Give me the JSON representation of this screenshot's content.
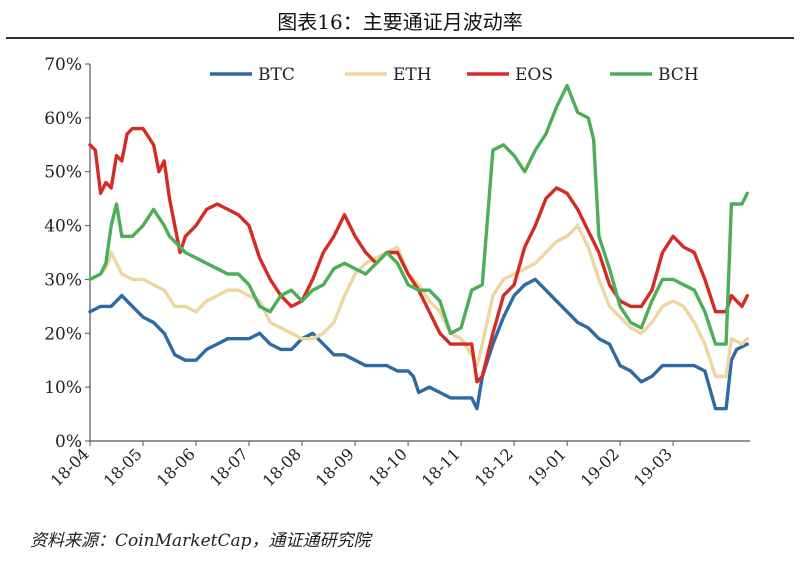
{
  "header": {
    "title": "图表16：主要通证月波动率"
  },
  "footer": {
    "source": "资料来源：CoinMarketCap，通证通研究院"
  },
  "chart_data": {
    "type": "line",
    "title": "图表16：主要通证月波动率",
    "xlabel": "",
    "ylabel": "",
    "ylim": [
      0,
      70
    ],
    "yticks": [
      "0%",
      "10%",
      "20%",
      "30%",
      "40%",
      "50%",
      "60%",
      "70%"
    ],
    "xlim": [
      0,
      12.45
    ],
    "categories": [
      "18-04",
      "18-05",
      "18-06",
      "18-07",
      "18-08",
      "18-09",
      "18-10",
      "18-11",
      "18-12",
      "19-01",
      "19-02",
      "19-03"
    ],
    "legend_position": "top",
    "grid": false,
    "colors": {
      "BTC": "#2e6aa6",
      "ETH": "#eed6a0",
      "EOS": "#d62b24",
      "BCH": "#4caf58"
    },
    "series": [
      {
        "name": "BTC",
        "points": [
          [
            0,
            24
          ],
          [
            0.2,
            25
          ],
          [
            0.4,
            25
          ],
          [
            0.6,
            27
          ],
          [
            0.8,
            25
          ],
          [
            1,
            23
          ],
          [
            1.2,
            22
          ],
          [
            1.4,
            20
          ],
          [
            1.6,
            16
          ],
          [
            1.8,
            15
          ],
          [
            2,
            15
          ],
          [
            2.2,
            17
          ],
          [
            2.4,
            18
          ],
          [
            2.6,
            19
          ],
          [
            2.8,
            19
          ],
          [
            3,
            19
          ],
          [
            3.2,
            20
          ],
          [
            3.4,
            18
          ],
          [
            3.6,
            17
          ],
          [
            3.8,
            17
          ],
          [
            4,
            19
          ],
          [
            4.2,
            20
          ],
          [
            4.4,
            18
          ],
          [
            4.6,
            16
          ],
          [
            4.8,
            16
          ],
          [
            5,
            15
          ],
          [
            5.2,
            14
          ],
          [
            5.4,
            14
          ],
          [
            5.6,
            14
          ],
          [
            5.8,
            13
          ],
          [
            6,
            13
          ],
          [
            6.1,
            12
          ],
          [
            6.2,
            9
          ],
          [
            6.4,
            10
          ],
          [
            6.6,
            9
          ],
          [
            6.8,
            8
          ],
          [
            7,
            8
          ],
          [
            7.2,
            8
          ],
          [
            7.3,
            6
          ],
          [
            7.4,
            12
          ],
          [
            7.6,
            18
          ],
          [
            7.8,
            23
          ],
          [
            8,
            27
          ],
          [
            8.2,
            29
          ],
          [
            8.4,
            30
          ],
          [
            8.6,
            28
          ],
          [
            8.8,
            26
          ],
          [
            9,
            24
          ],
          [
            9.2,
            22
          ],
          [
            9.4,
            21
          ],
          [
            9.6,
            19
          ],
          [
            9.8,
            18
          ],
          [
            10,
            14
          ],
          [
            10.2,
            13
          ],
          [
            10.4,
            11
          ],
          [
            10.6,
            12
          ],
          [
            10.8,
            14
          ],
          [
            11,
            14
          ],
          [
            11.2,
            14
          ],
          [
            11.4,
            14
          ],
          [
            11.6,
            13
          ],
          [
            11.8,
            6
          ],
          [
            12,
            6
          ],
          [
            12.1,
            15
          ],
          [
            12.2,
            17
          ],
          [
            12.4,
            18
          ]
        ]
      },
      {
        "name": "ETH",
        "points": [
          [
            0,
            30
          ],
          [
            0.2,
            31
          ],
          [
            0.3,
            32
          ],
          [
            0.4,
            35
          ],
          [
            0.6,
            31
          ],
          [
            0.8,
            30
          ],
          [
            1,
            30
          ],
          [
            1.2,
            29
          ],
          [
            1.4,
            28
          ],
          [
            1.6,
            25
          ],
          [
            1.8,
            25
          ],
          [
            2,
            24
          ],
          [
            2.2,
            26
          ],
          [
            2.4,
            27
          ],
          [
            2.6,
            28
          ],
          [
            2.8,
            28
          ],
          [
            3,
            27
          ],
          [
            3.2,
            26
          ],
          [
            3.4,
            22
          ],
          [
            3.6,
            21
          ],
          [
            3.8,
            20
          ],
          [
            4,
            19
          ],
          [
            4.2,
            19
          ],
          [
            4.4,
            20
          ],
          [
            4.6,
            22
          ],
          [
            4.8,
            27
          ],
          [
            5,
            31
          ],
          [
            5.2,
            33
          ],
          [
            5.4,
            34
          ],
          [
            5.6,
            35
          ],
          [
            5.8,
            36
          ],
          [
            6,
            31
          ],
          [
            6.2,
            29
          ],
          [
            6.4,
            26
          ],
          [
            6.6,
            24
          ],
          [
            6.8,
            20
          ],
          [
            7,
            19
          ],
          [
            7.2,
            16
          ],
          [
            7.3,
            14
          ],
          [
            7.4,
            18
          ],
          [
            7.6,
            27
          ],
          [
            7.8,
            30
          ],
          [
            8,
            31
          ],
          [
            8.2,
            32
          ],
          [
            8.4,
            33
          ],
          [
            8.6,
            35
          ],
          [
            8.8,
            37
          ],
          [
            9,
            38
          ],
          [
            9.2,
            40
          ],
          [
            9.4,
            36
          ],
          [
            9.6,
            30
          ],
          [
            9.8,
            25
          ],
          [
            10,
            23
          ],
          [
            10.2,
            21
          ],
          [
            10.4,
            20
          ],
          [
            10.6,
            22
          ],
          [
            10.8,
            25
          ],
          [
            11,
            26
          ],
          [
            11.2,
            25
          ],
          [
            11.4,
            22
          ],
          [
            11.6,
            18
          ],
          [
            11.8,
            12
          ],
          [
            12,
            12
          ],
          [
            12.1,
            19
          ],
          [
            12.3,
            18
          ],
          [
            12.4,
            19
          ]
        ]
      },
      {
        "name": "EOS",
        "points": [
          [
            0,
            55
          ],
          [
            0.1,
            54
          ],
          [
            0.2,
            46
          ],
          [
            0.3,
            48
          ],
          [
            0.4,
            47
          ],
          [
            0.5,
            53
          ],
          [
            0.6,
            52
          ],
          [
            0.7,
            57
          ],
          [
            0.8,
            58
          ],
          [
            1,
            58
          ],
          [
            1.2,
            55
          ],
          [
            1.3,
            50
          ],
          [
            1.4,
            52
          ],
          [
            1.5,
            45
          ],
          [
            1.6,
            40
          ],
          [
            1.7,
            35
          ],
          [
            1.8,
            38
          ],
          [
            2,
            40
          ],
          [
            2.2,
            43
          ],
          [
            2.4,
            44
          ],
          [
            2.6,
            43
          ],
          [
            2.8,
            42
          ],
          [
            3,
            40
          ],
          [
            3.2,
            34
          ],
          [
            3.4,
            30
          ],
          [
            3.6,
            27
          ],
          [
            3.8,
            25
          ],
          [
            4,
            26
          ],
          [
            4.2,
            30
          ],
          [
            4.4,
            35
          ],
          [
            4.6,
            38
          ],
          [
            4.8,
            42
          ],
          [
            5,
            38
          ],
          [
            5.2,
            35
          ],
          [
            5.4,
            33
          ],
          [
            5.6,
            35
          ],
          [
            5.8,
            35
          ],
          [
            6,
            31
          ],
          [
            6.2,
            28
          ],
          [
            6.4,
            24
          ],
          [
            6.6,
            20
          ],
          [
            6.8,
            18
          ],
          [
            7,
            18
          ],
          [
            7.2,
            18
          ],
          [
            7.3,
            11
          ],
          [
            7.4,
            12
          ],
          [
            7.6,
            20
          ],
          [
            7.8,
            27
          ],
          [
            8,
            29
          ],
          [
            8.2,
            36
          ],
          [
            8.4,
            40
          ],
          [
            8.6,
            45
          ],
          [
            8.8,
            47
          ],
          [
            9,
            46
          ],
          [
            9.2,
            43
          ],
          [
            9.4,
            39
          ],
          [
            9.6,
            35
          ],
          [
            9.8,
            29
          ],
          [
            10,
            26
          ],
          [
            10.2,
            25
          ],
          [
            10.4,
            25
          ],
          [
            10.6,
            28
          ],
          [
            10.8,
            35
          ],
          [
            11,
            38
          ],
          [
            11.2,
            36
          ],
          [
            11.4,
            35
          ],
          [
            11.6,
            30
          ],
          [
            11.8,
            24
          ],
          [
            12,
            24
          ],
          [
            12.1,
            27
          ],
          [
            12.3,
            25
          ],
          [
            12.4,
            27
          ]
        ]
      },
      {
        "name": "BCH",
        "points": [
          [
            0,
            30
          ],
          [
            0.2,
            31
          ],
          [
            0.3,
            33
          ],
          [
            0.4,
            40
          ],
          [
            0.5,
            44
          ],
          [
            0.6,
            38
          ],
          [
            0.8,
            38
          ],
          [
            1,
            40
          ],
          [
            1.2,
            43
          ],
          [
            1.4,
            40
          ],
          [
            1.5,
            38
          ],
          [
            1.6,
            37
          ],
          [
            1.8,
            35
          ],
          [
            2,
            34
          ],
          [
            2.2,
            33
          ],
          [
            2.4,
            32
          ],
          [
            2.6,
            31
          ],
          [
            2.8,
            31
          ],
          [
            3,
            29
          ],
          [
            3.2,
            25
          ],
          [
            3.4,
            24
          ],
          [
            3.6,
            27
          ],
          [
            3.8,
            28
          ],
          [
            4,
            26
          ],
          [
            4.2,
            28
          ],
          [
            4.4,
            29
          ],
          [
            4.6,
            32
          ],
          [
            4.8,
            33
          ],
          [
            5,
            32
          ],
          [
            5.2,
            31
          ],
          [
            5.4,
            33
          ],
          [
            5.6,
            35
          ],
          [
            5.8,
            33
          ],
          [
            6,
            29
          ],
          [
            6.2,
            28
          ],
          [
            6.4,
            28
          ],
          [
            6.6,
            26
          ],
          [
            6.8,
            20
          ],
          [
            7,
            21
          ],
          [
            7.2,
            28
          ],
          [
            7.4,
            29
          ],
          [
            7.6,
            54
          ],
          [
            7.8,
            55
          ],
          [
            8,
            53
          ],
          [
            8.2,
            50
          ],
          [
            8.4,
            54
          ],
          [
            8.6,
            57
          ],
          [
            8.8,
            62
          ],
          [
            9,
            66
          ],
          [
            9.2,
            61
          ],
          [
            9.4,
            60
          ],
          [
            9.5,
            56
          ],
          [
            9.6,
            38
          ],
          [
            9.8,
            32
          ],
          [
            10,
            25
          ],
          [
            10.2,
            22
          ],
          [
            10.4,
            21
          ],
          [
            10.6,
            26
          ],
          [
            10.8,
            30
          ],
          [
            11,
            30
          ],
          [
            11.2,
            29
          ],
          [
            11.4,
            28
          ],
          [
            11.6,
            24
          ],
          [
            11.8,
            18
          ],
          [
            12,
            18
          ],
          [
            12.1,
            44
          ],
          [
            12.3,
            44
          ],
          [
            12.4,
            46
          ]
        ]
      }
    ]
  }
}
